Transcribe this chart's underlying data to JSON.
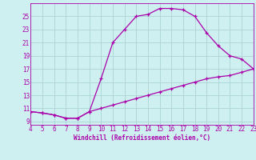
{
  "xlabel": "Windchill (Refroidissement éolien,°C)",
  "bg_color": "#cff0f0",
  "grid_color": "#aad4d4",
  "line_color": "#aa00aa",
  "xlim": [
    4,
    23
  ],
  "ylim": [
    8.5,
    27
  ],
  "xticks": [
    4,
    5,
    6,
    7,
    8,
    9,
    10,
    11,
    12,
    13,
    14,
    15,
    16,
    17,
    18,
    19,
    20,
    21,
    22,
    23
  ],
  "yticks": [
    9,
    11,
    13,
    15,
    17,
    19,
    21,
    23,
    25
  ],
  "series1_x": [
    4,
    5,
    6,
    7,
    8,
    9,
    10,
    11,
    12,
    13,
    14,
    15,
    16,
    17,
    18,
    19,
    20,
    21,
    22,
    23
  ],
  "series1_y": [
    10.5,
    10.3,
    10.0,
    9.5,
    9.5,
    10.5,
    15.5,
    21.0,
    23.0,
    25.0,
    25.3,
    26.2,
    26.2,
    26.0,
    25.0,
    22.5,
    20.5,
    19.0,
    18.5,
    17.0
  ],
  "series2_x": [
    4,
    5,
    6,
    7,
    8,
    9,
    10,
    11,
    12,
    13,
    14,
    15,
    16,
    17,
    18,
    19,
    20,
    21,
    22,
    23
  ],
  "series2_y": [
    10.5,
    10.3,
    10.0,
    9.5,
    9.5,
    10.5,
    11.0,
    11.5,
    12.0,
    12.5,
    13.0,
    13.5,
    14.0,
    14.5,
    15.0,
    15.5,
    15.8,
    16.0,
    16.5,
    17.0
  ],
  "tick_fontsize": 5.5,
  "xlabel_fontsize": 5.5
}
